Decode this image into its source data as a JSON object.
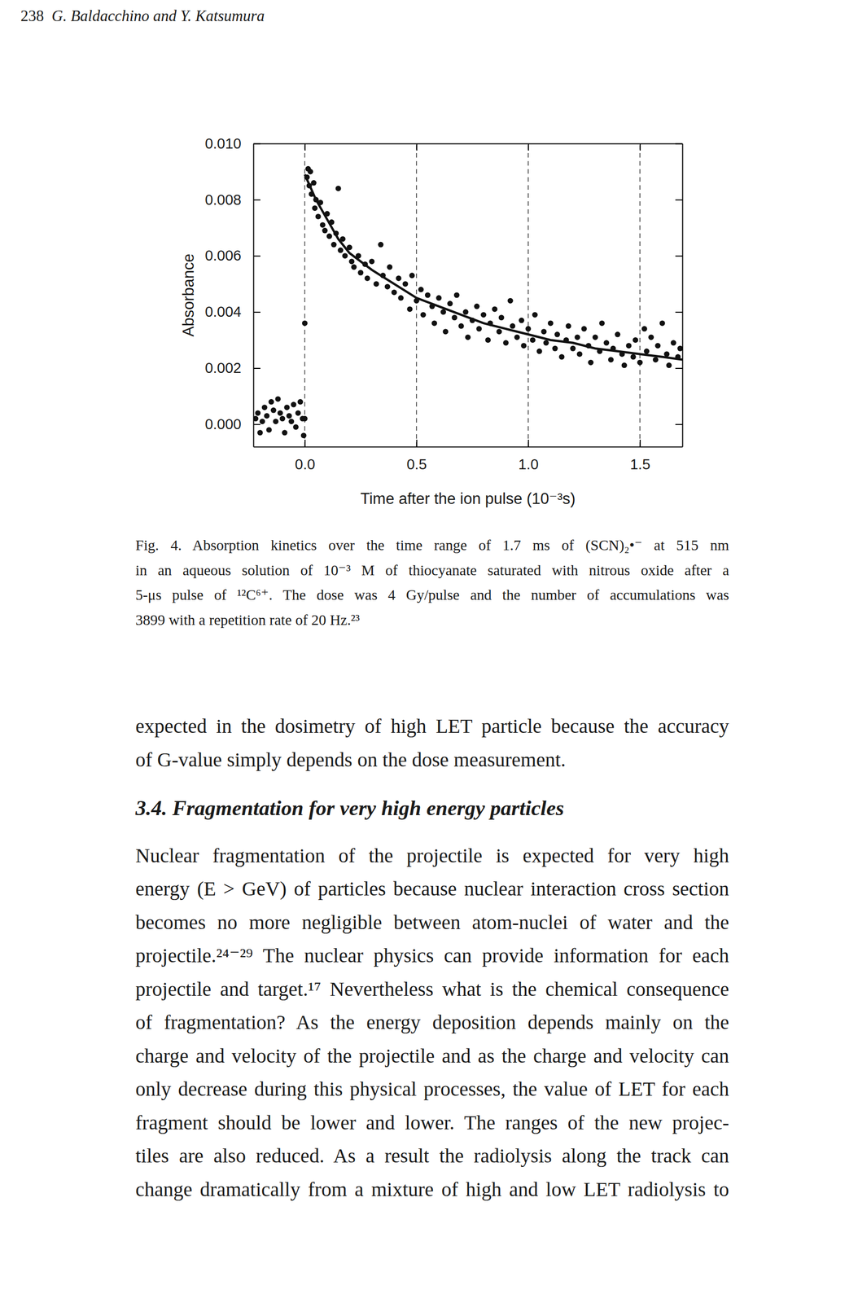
{
  "header": {
    "page": "238",
    "authors": "G. Baldacchino and Y. Katsumura"
  },
  "chart_data": {
    "type": "scatter",
    "xlabel": "Time after the ion pulse (10⁻³s)",
    "ylabel": "Absorbance",
    "xlim": [
      -0.23,
      1.69
    ],
    "ylim": [
      -0.0008,
      0.01
    ],
    "xticks": [
      {
        "value": 0,
        "label": "0.0"
      },
      {
        "value": 0.5,
        "label": "0.5"
      },
      {
        "value": 1,
        "label": "1.0"
      },
      {
        "value": 1.5,
        "label": "1.5"
      }
    ],
    "yticks": [
      {
        "value": 0,
        "label": "0.000"
      },
      {
        "value": 0.002,
        "label": "0.002"
      },
      {
        "value": 0.004,
        "label": "0.004"
      },
      {
        "value": 0.006,
        "label": "0.006"
      },
      {
        "value": 0.008,
        "label": "0.008"
      },
      {
        "value": 0.01,
        "label": "0.010"
      }
    ],
    "grid": "x",
    "series": [
      {
        "type": "scatter",
        "marker": "circle",
        "color": "#111111",
        "x": [
          -0.22,
          -0.21,
          -0.2,
          -0.19,
          -0.18,
          -0.17,
          -0.16,
          -0.15,
          -0.14,
          -0.13,
          -0.12,
          -0.11,
          -0.1,
          -0.09,
          -0.08,
          -0.07,
          -0.06,
          -0.05,
          -0.04,
          -0.03,
          -0.02,
          -0.01,
          -0.005,
          0.0,
          0.0,
          0.01,
          0.015,
          0.02,
          0.025,
          0.03,
          0.04,
          0.045,
          0.05,
          0.06,
          0.07,
          0.08,
          0.09,
          0.1,
          0.11,
          0.12,
          0.13,
          0.14,
          0.15,
          0.16,
          0.17,
          0.18,
          0.2,
          0.21,
          0.22,
          0.24,
          0.25,
          0.27,
          0.28,
          0.3,
          0.32,
          0.34,
          0.35,
          0.37,
          0.38,
          0.4,
          0.42,
          0.43,
          0.45,
          0.47,
          0.48,
          0.5,
          0.52,
          0.53,
          0.55,
          0.57,
          0.58,
          0.6,
          0.62,
          0.63,
          0.65,
          0.67,
          0.68,
          0.7,
          0.72,
          0.73,
          0.75,
          0.77,
          0.78,
          0.8,
          0.82,
          0.83,
          0.85,
          0.87,
          0.88,
          0.9,
          0.92,
          0.93,
          0.95,
          0.97,
          0.98,
          1.0,
          1.02,
          1.03,
          1.05,
          1.07,
          1.08,
          1.1,
          1.12,
          1.13,
          1.15,
          1.17,
          1.18,
          1.2,
          1.22,
          1.23,
          1.25,
          1.27,
          1.28,
          1.3,
          1.32,
          1.33,
          1.35,
          1.37,
          1.38,
          1.4,
          1.42,
          1.43,
          1.45,
          1.47,
          1.48,
          1.5,
          1.52,
          1.53,
          1.55,
          1.57,
          1.58,
          1.6,
          1.62,
          1.63,
          1.65,
          1.67,
          1.68
        ],
        "values": [
          0.0002,
          0.0004,
          -0.0003,
          0.0001,
          0.0006,
          0.0003,
          -0.0002,
          0.0008,
          0.0005,
          0.0001,
          0.0009,
          0.0004,
          0.0002,
          -0.0003,
          0.0006,
          0.0003,
          0.0001,
          0.0007,
          -0.0001,
          0.0004,
          0.0008,
          0.0002,
          -0.0004,
          0.0036,
          0.0002,
          0.0088,
          0.0091,
          0.0085,
          0.009,
          0.0082,
          0.0086,
          0.0077,
          0.008,
          0.0074,
          0.0079,
          0.0071,
          0.0069,
          0.0075,
          0.0067,
          0.0072,
          0.0064,
          0.0068,
          0.0084,
          0.0062,
          0.0066,
          0.006,
          0.0063,
          0.0058,
          0.0056,
          0.006,
          0.0054,
          0.0057,
          0.0052,
          0.0058,
          0.005,
          0.0064,
          0.0053,
          0.0049,
          0.0056,
          0.0047,
          0.0052,
          0.0045,
          0.005,
          0.0041,
          0.0053,
          0.0044,
          0.0048,
          0.0039,
          0.0046,
          0.0042,
          0.0036,
          0.0045,
          0.004,
          0.0033,
          0.0043,
          0.0038,
          0.0046,
          0.0035,
          0.004,
          0.0031,
          0.0037,
          0.0042,
          0.0034,
          0.0039,
          0.003,
          0.0036,
          0.0041,
          0.0033,
          0.0038,
          0.0029,
          0.0044,
          0.0035,
          0.0031,
          0.0037,
          0.0028,
          0.0034,
          0.003,
          0.0039,
          0.0026,
          0.0033,
          0.0029,
          0.0036,
          0.0027,
          0.0032,
          0.0024,
          0.003,
          0.0035,
          0.0027,
          0.0031,
          0.0025,
          0.0034,
          0.0028,
          0.0022,
          0.0031,
          0.0026,
          0.0036,
          0.0029,
          0.0023,
          0.0027,
          0.0032,
          0.0025,
          0.0021,
          0.0028,
          0.0024,
          0.003,
          0.0022,
          0.0034,
          0.0026,
          0.0031,
          0.0023,
          0.0028,
          0.0036,
          0.0025,
          0.0021,
          0.0029,
          0.0024,
          0.0027
        ]
      },
      {
        "type": "line",
        "line_style": "solid",
        "color": "#111111",
        "x": [
          0.0,
          0.05,
          0.1,
          0.15,
          0.2,
          0.3,
          0.4,
          0.5,
          0.6,
          0.7,
          0.8,
          0.9,
          1.0,
          1.1,
          1.2,
          1.3,
          1.4,
          1.5,
          1.6,
          1.69
        ],
        "values": [
          0.0089,
          0.008,
          0.0073,
          0.0066,
          0.0061,
          0.0055,
          0.005,
          0.0045,
          0.0042,
          0.0039,
          0.0036,
          0.0034,
          0.0032,
          0.003,
          0.0029,
          0.0027,
          0.0026,
          0.0025,
          0.0024,
          0.0023
        ]
      }
    ]
  },
  "caption": {
    "lines": [
      "Fig. 4.  Absorption kinetics over the time range of 1.7 ms of (SCN)₂•⁻ at 515 nm",
      "in an aqueous solution of 10⁻³ M of thiocyanate saturated with nitrous oxide after a",
      "5-μs pulse of ¹²C⁶⁺. The dose was 4 Gy/pulse and the number of accumulations was",
      "3899 with a repetition rate of 20 Hz.²³"
    ]
  },
  "body": [
    {
      "lines": [
        "expected in the dosimetry of high LET particle because the accuracy",
        "of G-value simply depends on the dose measurement."
      ]
    },
    {
      "heading": "3.4. Fragmentation for very high energy particles"
    },
    {
      "lines": [
        "Nuclear fragmentation of the projectile is expected for very high",
        "energy (E > GeV) of particles because nuclear interaction cross section",
        "becomes no more negligible between atom-nuclei of water and the",
        "projectile.²⁴⁻²⁹ The nuclear physics can provide information for each",
        "projectile and target.¹⁷ Nevertheless what is the chemical consequence",
        "of fragmentation? As the energy deposition depends mainly on the",
        "charge and velocity of the projectile and as the charge and velocity can",
        "only decrease during this physical processes, the value of LET for each",
        "fragment should be lower and lower. The ranges of the new projec-",
        "tiles are also reduced. As a result the radiolysis along the track can",
        "change dramatically from a mixture of high and low LET radiolysis to"
      ]
    }
  ]
}
